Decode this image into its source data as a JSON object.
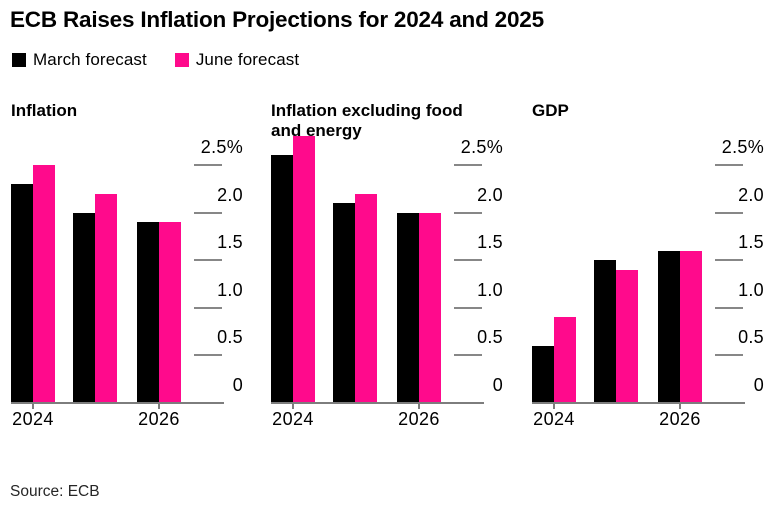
{
  "title": "ECB Raises Inflation Projections for 2024 and 2025",
  "legend": [
    {
      "label": "March forecast",
      "color": "#000000"
    },
    {
      "label": "June forecast",
      "color": "#ff0a8c"
    }
  ],
  "source": "Source: ECB",
  "colors": {
    "march_bar": "#000000",
    "june_bar": "#ff0a8c",
    "axis_line": "#7d7d7d",
    "tick_dash": "#878787",
    "text": "#000000"
  },
  "y_axis": {
    "unit": "%",
    "ylim": [
      0,
      2.5
    ],
    "ticks": [
      {
        "value": 2.5,
        "label": "2.5%"
      },
      {
        "value": 2.0,
        "label": "2.0"
      },
      {
        "value": 1.5,
        "label": "1.5"
      },
      {
        "value": 1.0,
        "label": "1.0"
      },
      {
        "value": 0.5,
        "label": "0.5"
      },
      {
        "value": 0,
        "label": "0"
      }
    ]
  },
  "chart_data": [
    {
      "type": "bar",
      "title": "Inflation",
      "categories": [
        "2024",
        "2025",
        "2026"
      ],
      "visible_x_labels": [
        {
          "text": "2024",
          "group": 0
        },
        {
          "text": "2026",
          "group": 2
        }
      ],
      "series": [
        {
          "name": "March forecast",
          "values": [
            2.3,
            2.0,
            1.9
          ]
        },
        {
          "name": "June forecast",
          "values": [
            2.5,
            2.2,
            1.9
          ]
        }
      ],
      "ylim": [
        0,
        2.5
      ],
      "grid": false,
      "legend_position": "top"
    },
    {
      "type": "bar",
      "title": "Inflation excluding food and energy",
      "categories": [
        "2024",
        "2025",
        "2026"
      ],
      "visible_x_labels": [
        {
          "text": "2024",
          "group": 0
        },
        {
          "text": "2026",
          "group": 2
        }
      ],
      "series": [
        {
          "name": "March forecast",
          "values": [
            2.6,
            2.1,
            2.0
          ]
        },
        {
          "name": "June forecast",
          "values": [
            2.8,
            2.2,
            2.0
          ]
        }
      ],
      "ylim": [
        0,
        2.5
      ],
      "grid": false,
      "legend_position": "top"
    },
    {
      "type": "bar",
      "title": "GDP",
      "categories": [
        "2024",
        "2025",
        "2026"
      ],
      "visible_x_labels": [
        {
          "text": "2024",
          "group": 0
        },
        {
          "text": "2026",
          "group": 2
        }
      ],
      "series": [
        {
          "name": "March forecast",
          "values": [
            0.6,
            1.5,
            1.6
          ]
        },
        {
          "name": "June forecast",
          "values": [
            0.9,
            1.4,
            1.6
          ]
        }
      ],
      "ylim": [
        0,
        2.5
      ],
      "grid": false,
      "legend_position": "top"
    }
  ]
}
